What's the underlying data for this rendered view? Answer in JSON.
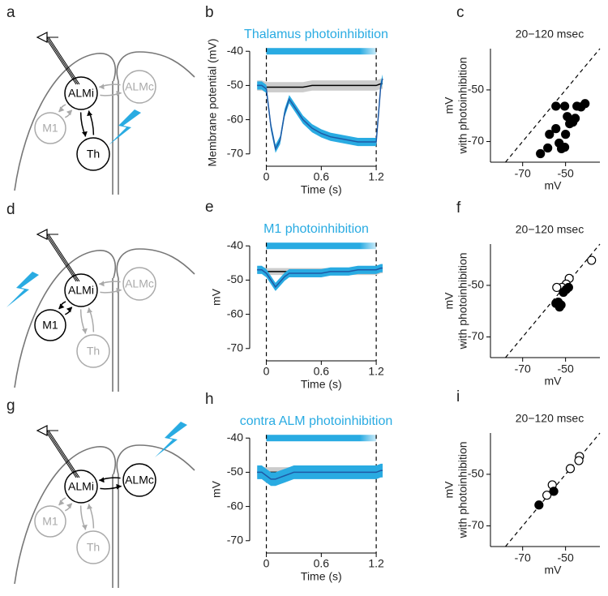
{
  "diagrams": [
    {
      "label": "a",
      "nodes": [
        {
          "label": "ALMi",
          "active": true
        },
        {
          "label": "ALMc",
          "active": false
        },
        {
          "label": "M1",
          "active": false
        },
        {
          "label": "Th",
          "active": true
        }
      ]
    },
    {
      "label": "d",
      "nodes": [
        {
          "label": "ALMi",
          "active": true
        },
        {
          "label": "ALMc",
          "active": false
        },
        {
          "label": "M1",
          "active": true
        },
        {
          "label": "Th",
          "active": false
        }
      ]
    },
    {
      "label": "g",
      "nodes": [
        {
          "label": "ALMi",
          "active": true
        },
        {
          "label": "ALMc",
          "active": true
        },
        {
          "label": "M1",
          "active": false
        },
        {
          "label": "Th",
          "active": false
        }
      ]
    }
  ],
  "chart_data": [
    {
      "type": "line",
      "label": "b",
      "title": "Thalamus photoinhibition",
      "title_color": "#29abe2",
      "x_label": "Time (s)",
      "y_label": "Membrane potential (mV)",
      "xlim": [
        -0.12,
        1.27
      ],
      "ylim": [
        -71,
        -39
      ],
      "xticks": [
        0,
        0.6,
        1.2
      ],
      "yticks": [
        -40,
        -50,
        -60,
        -70
      ],
      "light": [
        0,
        1.2
      ],
      "light_color": "#29abe2",
      "x": [
        -0.1,
        -0.05,
        0,
        0.05,
        0.1,
        0.15,
        0.2,
        0.25,
        0.3,
        0.4,
        0.5,
        0.6,
        0.7,
        0.8,
        0.9,
        1.0,
        1.1,
        1.2,
        1.25,
        1.27
      ],
      "series": [
        {
          "color": "#000000",
          "band_color": "#cccccc",
          "values": [
            -50,
            -50,
            -50.5,
            -50.5,
            -50.5,
            -50.5,
            -50.5,
            -50.5,
            -50.5,
            -50.5,
            -50,
            -50,
            -50,
            -50,
            -50,
            -50,
            -50,
            -50,
            -49.5,
            -49.5
          ],
          "error": [
            1.5,
            1.5,
            1.5,
            1.5,
            1.5,
            1.5,
            1.5,
            1.5,
            1.5,
            1.5,
            1.5,
            1.5,
            1.5,
            1.5,
            1.5,
            1.5,
            1.5,
            1.5,
            1.5,
            1.5
          ]
        },
        {
          "color": "#1f5aa6",
          "band_color": "#29abe2",
          "values": [
            -50,
            -50,
            -51,
            -62,
            -68.5,
            -66,
            -58,
            -54,
            -56,
            -60,
            -62.5,
            -64,
            -65,
            -65.5,
            -66,
            -66.5,
            -66.5,
            -66.5,
            -50,
            -48
          ],
          "error": [
            1.2,
            1.2,
            1.2,
            1.2,
            1.2,
            1.2,
            1.2,
            1.2,
            1.2,
            1.2,
            1.2,
            1.2,
            1.2,
            1.2,
            1.2,
            1.2,
            1.2,
            1.2,
            1.2,
            1.2
          ]
        }
      ]
    },
    {
      "type": "line",
      "label": "e",
      "title": "M1 photoinhibition",
      "title_color": "#29abe2",
      "x_label": "Time (s)",
      "y_label": "mV",
      "xlim": [
        -0.12,
        1.27
      ],
      "ylim": [
        -71,
        -39
      ],
      "xticks": [
        0,
        0.6,
        1.2
      ],
      "yticks": [
        -40,
        -50,
        -60,
        -70
      ],
      "light": [
        0,
        1.2
      ],
      "light_color": "#29abe2",
      "x": [
        -0.1,
        -0.05,
        0,
        0.05,
        0.1,
        0.15,
        0.2,
        0.25,
        0.3,
        0.4,
        0.5,
        0.6,
        0.7,
        0.8,
        0.9,
        1.0,
        1.1,
        1.2,
        1.25,
        1.27
      ],
      "series": [
        {
          "color": "#000000",
          "band_color": "#cccccc",
          "values": [
            -47,
            -47,
            -47.5,
            -47.5,
            -47.5,
            -47.5,
            -47.5,
            -47.5,
            -47.5,
            -47.5,
            -47.5,
            -47.5,
            -47.5,
            -47.5,
            -47.5,
            -47.5,
            -47.5,
            -47.5,
            -47,
            -47
          ],
          "error": [
            1,
            1,
            1,
            1,
            1,
            1,
            1,
            1,
            1,
            1,
            1,
            1,
            1,
            1,
            1,
            1,
            1,
            1,
            1,
            1
          ]
        },
        {
          "color": "#1f5aa6",
          "band_color": "#29abe2",
          "values": [
            -47,
            -47,
            -48,
            -50,
            -52,
            -50.5,
            -49,
            -48,
            -48,
            -48,
            -48,
            -48,
            -47.5,
            -47.5,
            -47.5,
            -47,
            -47,
            -47,
            -46.5,
            -46.5
          ],
          "error": [
            1.2,
            1.2,
            1.2,
            1.2,
            1.2,
            1.2,
            1.2,
            1.2,
            1.2,
            1.2,
            1.2,
            1.2,
            1.2,
            1.2,
            1.2,
            1.2,
            1.2,
            1.2,
            1.2,
            1.2
          ]
        }
      ]
    },
    {
      "type": "line",
      "label": "h",
      "title": "contra ALM photoinhibition",
      "title_color": "#29abe2",
      "x_label": "Time (s)",
      "y_label": "mV",
      "xlim": [
        -0.12,
        1.27
      ],
      "ylim": [
        -71,
        -39
      ],
      "xticks": [
        0,
        0.6,
        1.2
      ],
      "yticks": [
        -40,
        -50,
        -60,
        -70
      ],
      "light": [
        0,
        1.2
      ],
      "light_color": "#29abe2",
      "x": [
        -0.1,
        -0.05,
        0,
        0.05,
        0.1,
        0.15,
        0.2,
        0.25,
        0.3,
        0.4,
        0.5,
        0.6,
        0.7,
        0.8,
        0.9,
        1.0,
        1.1,
        1.2,
        1.25,
        1.27
      ],
      "series": [
        {
          "color": "#000000",
          "band_color": "#cccccc",
          "values": [
            -50,
            -50,
            -50,
            -50,
            -50,
            -50,
            -50,
            -50,
            -50,
            -50,
            -50,
            -50,
            -50,
            -50,
            -50,
            -50,
            -50,
            -50,
            -49.5,
            -49.5
          ],
          "error": [
            1.5,
            1.5,
            1.5,
            1.5,
            1.5,
            1.5,
            1.5,
            1.5,
            1.5,
            1.5,
            1.5,
            1.5,
            1.5,
            1.5,
            1.5,
            1.5,
            1.5,
            1.5,
            1.5,
            1.5
          ]
        },
        {
          "color": "#1f5aa6",
          "band_color": "#29abe2",
          "values": [
            -50,
            -50,
            -51,
            -52,
            -52,
            -51.5,
            -51,
            -50.5,
            -50,
            -50,
            -50,
            -50,
            -50,
            -50,
            -50,
            -50,
            -50,
            -50,
            -49.5,
            -49.5
          ],
          "error": [
            2,
            2,
            2,
            2,
            2,
            2,
            2,
            2,
            2,
            2,
            2,
            2,
            2,
            2,
            2,
            2,
            2,
            2,
            2,
            2
          ]
        }
      ]
    },
    {
      "type": "scatter",
      "label": "c",
      "title": "20−120 msec",
      "x_label": "mV",
      "y_label": [
        "mV",
        "with photoinhibition"
      ],
      "xlim": [
        -85,
        -34
      ],
      "ylim": [
        -78,
        -34
      ],
      "xticks": [
        -70,
        -50
      ],
      "yticks": [
        -50,
        -70
      ],
      "diagonal": true,
      "series": [
        {
          "color": "#000000",
          "filled": true,
          "x": [
            -61.7,
            -58.3,
            -57.5,
            -54.5,
            -54.5,
            -53,
            -50.4,
            -51.9,
            -50,
            -48.1,
            -49.2,
            -46.6,
            -45.5,
            -44.7,
            -40.9,
            -42.8,
            -50.4
          ],
          "values": [
            -74.7,
            -72.5,
            -67.2,
            -65,
            -56.3,
            -70.6,
            -72.2,
            -72.8,
            -67.2,
            -63.1,
            -60.3,
            -62.5,
            -61,
            -56.3,
            -55.3,
            -56.6,
            -56.3
          ]
        }
      ]
    },
    {
      "type": "scatter",
      "label": "f",
      "title": "20−120 msec",
      "x_label": "mV",
      "y_label": [
        "mV",
        "with photoinhibition"
      ],
      "xlim": [
        -85,
        -34
      ],
      "ylim": [
        -78,
        -34
      ],
      "xticks": [
        -70,
        -50
      ],
      "yticks": [
        -50,
        -70
      ],
      "diagonal": true,
      "series": [
        {
          "color": "#000000",
          "filled": false,
          "x": [
            -37.9,
            -48.3,
            -49.7,
            -51.7,
            -54.1
          ],
          "values": [
            -40.3,
            -47.3,
            -49.5,
            -50.8,
            -50.8
          ]
        },
        {
          "color": "#000000",
          "filled": true,
          "x": [
            -48.6,
            -49.7,
            -51,
            -53.4,
            -52.1,
            -52.8,
            -54.5
          ],
          "values": [
            -50.8,
            -51.6,
            -52.7,
            -56.5,
            -57.6,
            -58.4,
            -57
          ]
        }
      ]
    },
    {
      "type": "scatter",
      "label": "i",
      "title": "20−120 msec",
      "x_label": "mV",
      "y_label": [
        "mV",
        "with photoinhibition"
      ],
      "xlim": [
        -85,
        -34
      ],
      "ylim": [
        -78,
        -34
      ],
      "xticks": [
        -70,
        -50
      ],
      "yticks": [
        -50,
        -70
      ],
      "diagonal": true,
      "series": [
        {
          "color": "#000000",
          "filled": false,
          "x": [
            -43.5,
            -43.8,
            -47.8,
            -56.2,
            -58.7
          ],
          "values": [
            -43.1,
            -44.7,
            -47.8,
            -54.1,
            -58.1
          ]
        },
        {
          "color": "#000000",
          "filled": true,
          "x": [
            -62.4,
            -55.5
          ],
          "values": [
            -61.9,
            -56.6
          ]
        }
      ]
    }
  ]
}
